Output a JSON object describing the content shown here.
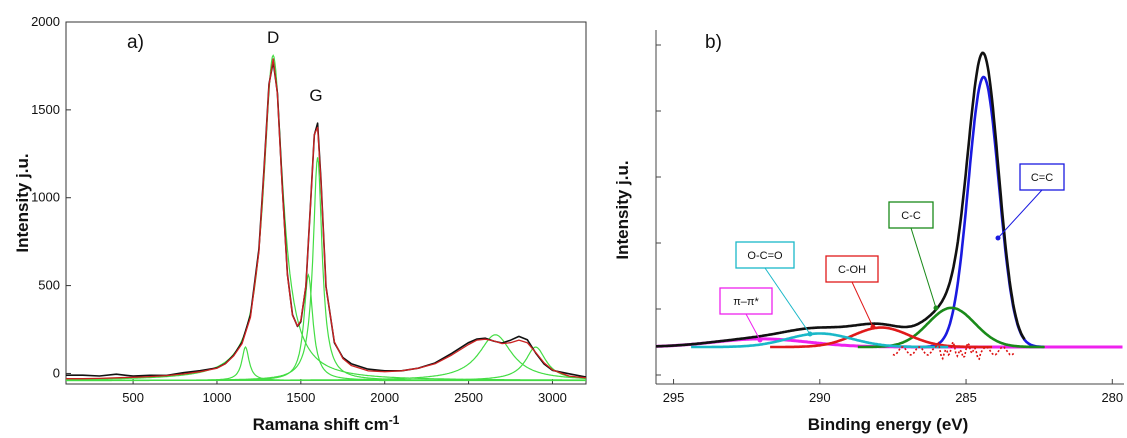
{
  "chart_data": [
    {
      "type": "line",
      "panel_label": "a)",
      "xlabel": "Ramana shift cm",
      "xlabel_sup": "-1",
      "ylabel": "Intensity j.u.",
      "xlim": [
        100,
        3200
      ],
      "ylim": [
        -60,
        2000
      ],
      "xticks": [
        500,
        1000,
        1500,
        2000,
        2500,
        3000
      ],
      "yticks": [
        0,
        500,
        1000,
        1500,
        2000
      ],
      "peak_labels": [
        {
          "text": "D",
          "x": 1335,
          "y": 1880
        },
        {
          "text": "G",
          "x": 1590,
          "y": 1550
        }
      ],
      "colors": {
        "measured": "#111111",
        "fit": "#cc2222",
        "component": "#44dd44"
      },
      "baseline": -40,
      "series": [
        {
          "role": "measured",
          "x": [
            100,
            200,
            300,
            400,
            500,
            600,
            700,
            800,
            900,
            1000,
            1050,
            1100,
            1150,
            1200,
            1250,
            1280,
            1310,
            1335,
            1360,
            1390,
            1420,
            1450,
            1480,
            1500,
            1530,
            1560,
            1580,
            1600,
            1620,
            1650,
            1700,
            1750,
            1800,
            1900,
            2000,
            2100,
            2200,
            2300,
            2400,
            2500,
            2550,
            2600,
            2650,
            2700,
            2750,
            2800,
            2850,
            2900,
            2950,
            3000,
            3100,
            3200
          ],
          "y": [
            -10,
            -15,
            -20,
            -5,
            -10,
            -5,
            -10,
            0,
            10,
            30,
            60,
            110,
            180,
            330,
            700,
            1150,
            1650,
            1780,
            1600,
            1050,
            560,
            330,
            270,
            300,
            500,
            1000,
            1350,
            1420,
            1100,
            500,
            180,
            90,
            50,
            20,
            15,
            20,
            35,
            60,
            110,
            170,
            195,
            205,
            190,
            175,
            185,
            205,
            190,
            120,
            60,
            20,
            -5,
            -20
          ]
        },
        {
          "role": "fit",
          "x": [
            100,
            200,
            300,
            400,
            500,
            600,
            700,
            800,
            900,
            1000,
            1050,
            1100,
            1150,
            1200,
            1250,
            1280,
            1310,
            1335,
            1360,
            1390,
            1420,
            1450,
            1480,
            1500,
            1530,
            1560,
            1580,
            1600,
            1620,
            1650,
            1700,
            1750,
            1800,
            1900,
            2000,
            2100,
            2200,
            2300,
            2400,
            2500,
            2550,
            2600,
            2650,
            2700,
            2750,
            2800,
            2850,
            2900,
            2950,
            3000,
            3100,
            3200
          ],
          "y": [
            -30,
            -30,
            -28,
            -25,
            -22,
            -18,
            -12,
            -3,
            10,
            30,
            55,
            100,
            170,
            320,
            690,
            1140,
            1640,
            1790,
            1590,
            1040,
            560,
            330,
            270,
            300,
            500,
            1000,
            1360,
            1400,
            1090,
            490,
            180,
            85,
            45,
            15,
            10,
            15,
            30,
            55,
            105,
            165,
            190,
            195,
            185,
            170,
            175,
            190,
            175,
            120,
            60,
            20,
            -15,
            -25
          ]
        },
        {
          "role": "component",
          "name": "D",
          "center": 1335,
          "height": 1810,
          "width": 70
        },
        {
          "role": "component",
          "name": "G",
          "center": 1600,
          "height": 1230,
          "width": 32
        },
        {
          "role": "component",
          "center": 1170,
          "height": 150,
          "width": 26
        },
        {
          "role": "component",
          "center": 1545,
          "height": 560,
          "width": 32
        },
        {
          "role": "component",
          "center": 2660,
          "height": 220,
          "width": 120
        },
        {
          "role": "component",
          "center": 2900,
          "height": 150,
          "width": 75
        }
      ]
    },
    {
      "type": "line",
      "panel_label": "b)",
      "xlabel": "Binding energy (eV)",
      "ylabel": "Intensity j.u.",
      "xlim": [
        295.6,
        279.6
      ],
      "xticks": [
        295,
        290,
        285,
        280
      ],
      "yticks_unlabeled": 6,
      "colors": {
        "envelope": "#111111",
        "residual": "#dd1111",
        "baseline": "#ee22ee"
      },
      "components": [
        {
          "label": "C=C",
          "color": "#1a1ae0",
          "center": 284.4,
          "height": 100,
          "width": 0.52
        },
        {
          "label": "C-C",
          "color": "#1a8a1a",
          "center": 285.5,
          "height": 14.5,
          "width": 0.8
        },
        {
          "label": "C-OH",
          "color": "#e01a1a",
          "center": 287.9,
          "height": 7.2,
          "width": 0.95
        },
        {
          "label": "O-C=O",
          "color": "#1ab8c8",
          "center": 290.0,
          "height": 5.0,
          "width": 1.1
        },
        {
          "label": "π–π*",
          "color": "#ee22ee",
          "center": 292.0,
          "height": 3.0,
          "width": 1.6
        }
      ],
      "label_colors": {
        "C=C": "#1a1ae0",
        "C-C": "#1a8a1a",
        "C-OH": "#e01a1a",
        "O-C=O": "#1ab8c8",
        "π–π*": "#ee22ee"
      }
    }
  ]
}
